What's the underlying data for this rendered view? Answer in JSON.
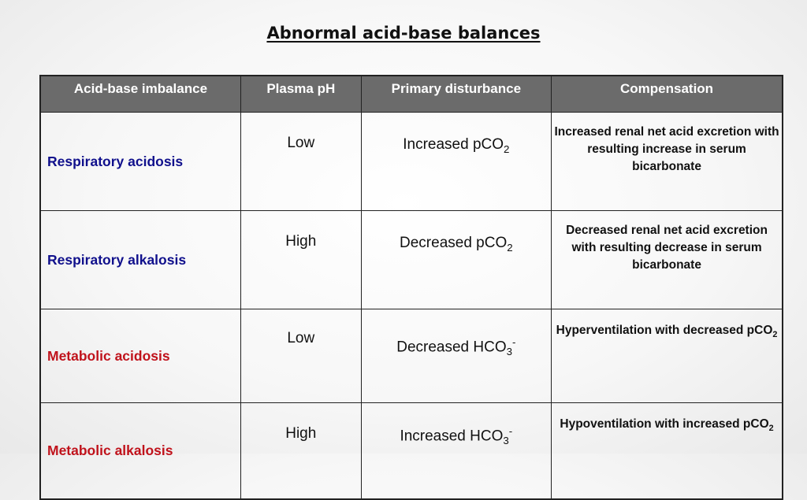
{
  "title": "Abnormal acid-base balances",
  "columns": [
    "Acid-base imbalance",
    "Plasma pH",
    "Primary disturbance",
    "Compensation"
  ],
  "rows": [
    {
      "imbalance": "Respiratory acidosis",
      "ph": "Low",
      "disturbance": {
        "text": "Increased pCO",
        "sub": "2",
        "sup": ""
      },
      "compensation": {
        "text": "Increased renal net acid excretion with resulting increase in serum bicarbonate",
        "sub": ""
      }
    },
    {
      "imbalance": "Respiratory alkalosis",
      "ph": "High",
      "disturbance": {
        "text": "Decreased pCO",
        "sub": "2",
        "sup": ""
      },
      "compensation": {
        "text": "Decreased renal net acid excretion with resulting decrease in serum bicarbonate",
        "sub": ""
      }
    },
    {
      "imbalance": "Metabolic acidosis",
      "ph": "Low",
      "disturbance": {
        "text": "Decreased HCO",
        "sub": "3",
        "sup": "-"
      },
      "compensation": {
        "text": "Hyperventilation with decreased pCO",
        "sub": "2"
      }
    },
    {
      "imbalance": "Metabolic alkalosis",
      "ph": "High",
      "disturbance": {
        "text": "Increased HCO",
        "sub": "3",
        "sup": "-"
      },
      "compensation": {
        "text": "Hypoventilation with increased pCO",
        "sub": "2"
      }
    }
  ],
  "colors": {
    "header_bg": "#6b6b6b",
    "respiratory_text": "#10108c",
    "metabolic_text": "#c0121b"
  }
}
